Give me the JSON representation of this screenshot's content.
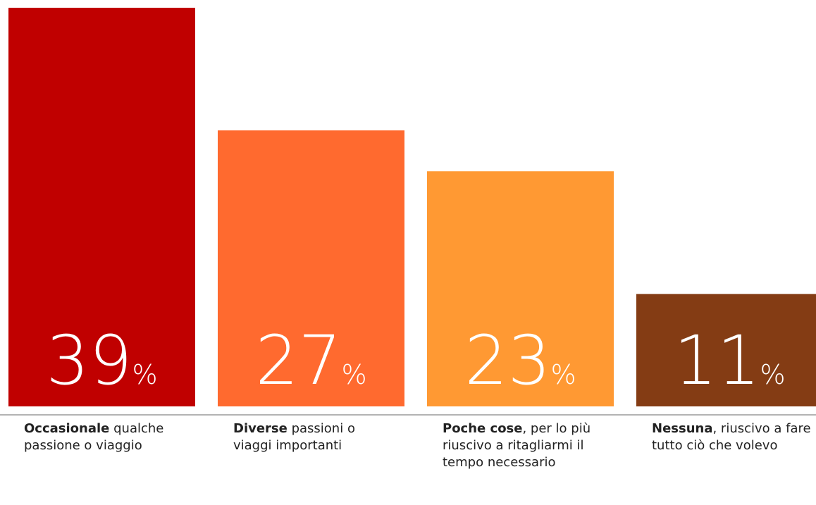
{
  "chart_data": {
    "type": "bar",
    "categories": [
      {
        "term": "Occasionale",
        "text": " qualche passione o viaggio"
      },
      {
        "term": "Diverse",
        "text": " passioni o viaggi importanti"
      },
      {
        "term": "Poche cose",
        "text": ", per lo più riuscivo a ritagliarmi il tempo necessario"
      },
      {
        "term": "Nessuna",
        "text": ", riuscivo a fare tutto ciò che volevo"
      }
    ],
    "values": [
      39,
      27,
      23,
      11
    ],
    "value_labels": [
      "39%",
      "27%",
      "23%",
      "11%"
    ],
    "colors": [
      "#c00000",
      "#ff6a2f",
      "#ff9933",
      "#843c14"
    ],
    "ylim": [
      0,
      39
    ]
  }
}
